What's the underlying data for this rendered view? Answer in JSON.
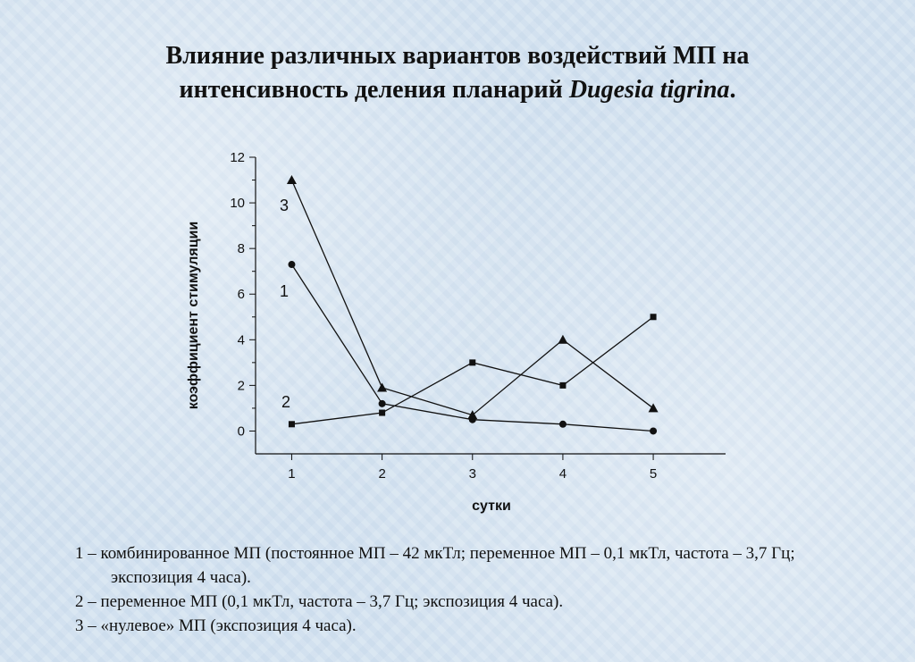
{
  "title": {
    "line1": "Влияние различных вариантов воздействий МП на",
    "line2_normal": "интенсивность деления планарий ",
    "line2_italic": "Dugesia tigrina",
    "line2_end": "."
  },
  "chart_data": {
    "type": "line",
    "title": "",
    "xlabel": "сутки",
    "ylabel": "коэффициент стимуляции",
    "x": [
      1,
      2,
      3,
      4,
      5
    ],
    "x_ticks": [
      "1",
      "2",
      "3",
      "4",
      "5"
    ],
    "y_ticks": [
      "0",
      "2",
      "4",
      "6",
      "8",
      "10",
      "12"
    ],
    "ylim": [
      -1,
      12
    ],
    "xlim": [
      0.6,
      5.8
    ],
    "grid": false,
    "legend": "none",
    "series": [
      {
        "name": "1",
        "marker": "circle",
        "values": [
          7.3,
          1.2,
          0.5,
          0.3,
          0.0
        ]
      },
      {
        "name": "2",
        "marker": "square",
        "values": [
          0.3,
          0.8,
          3.0,
          2.0,
          5.0
        ]
      },
      {
        "name": "3",
        "marker": "triangle",
        "values": [
          11.0,
          1.9,
          0.7,
          4.0,
          1.0
        ]
      }
    ]
  },
  "legend_text": [
    "1 – комбинированное МП (постоянное МП – 42 мкТл; переменное МП – 0,1 мкТл, частота – 3,7 Гц; экспозиция 4 часа).",
    "2 – переменное МП (0,1 мкТл, частота – 3,7 Гц; экспозиция 4 часа).",
    "3 – «нулевое» МП (экспозиция 4 часа)."
  ]
}
